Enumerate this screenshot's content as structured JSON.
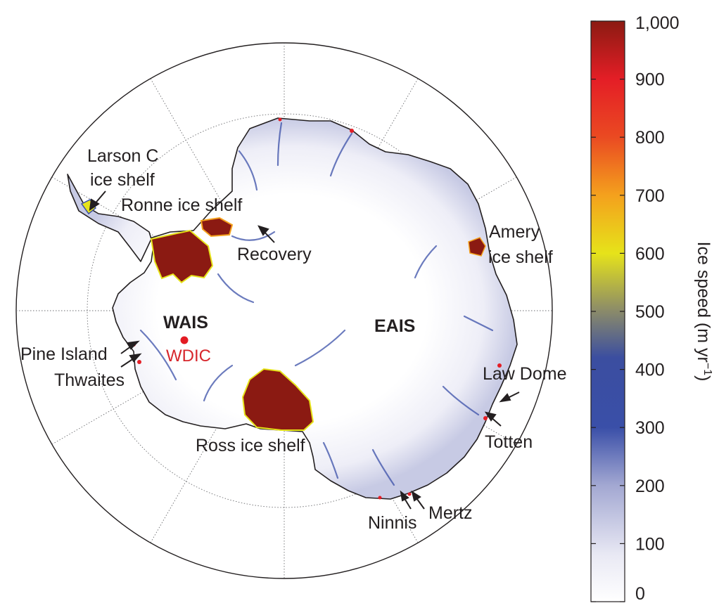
{
  "map": {
    "regions": {
      "wais": "WAIS",
      "eais": "EAIS"
    },
    "site": {
      "label": "WDIC",
      "color": "#e31b23"
    },
    "features": {
      "larson_line1": "Larson C",
      "larson_line2": "ice shelf",
      "ronne": "Ronne ice shelf",
      "recovery": "Recovery",
      "amery_line1": "Amery",
      "amery_line2": "ice shelf",
      "pine_island": "Pine Island",
      "thwaites": "Thwaites",
      "law_dome": "Law Dome",
      "totten": "Totten",
      "ross": "Ross ice shelf",
      "ninnis": "Ninnis",
      "mertz": "Mertz"
    }
  },
  "colorbar": {
    "title_main": "Ice speed (m yr",
    "title_sup": "−1",
    "title_close": ")",
    "min": 0,
    "max": 1000,
    "ticks": [
      "1,000",
      "900",
      "800",
      "700",
      "600",
      "500",
      "400",
      "300",
      "200",
      "100",
      "0"
    ],
    "colors": {
      "c0": "#ffffff",
      "c150": "#c4c6e0",
      "c300": "#3a4fa8",
      "c450": "#5a6a98",
      "c600": "#e6e31a",
      "c700": "#f4a11d",
      "c800": "#ea4a22",
      "c900": "#e41e26",
      "c1000": "#8b1a12"
    }
  }
}
